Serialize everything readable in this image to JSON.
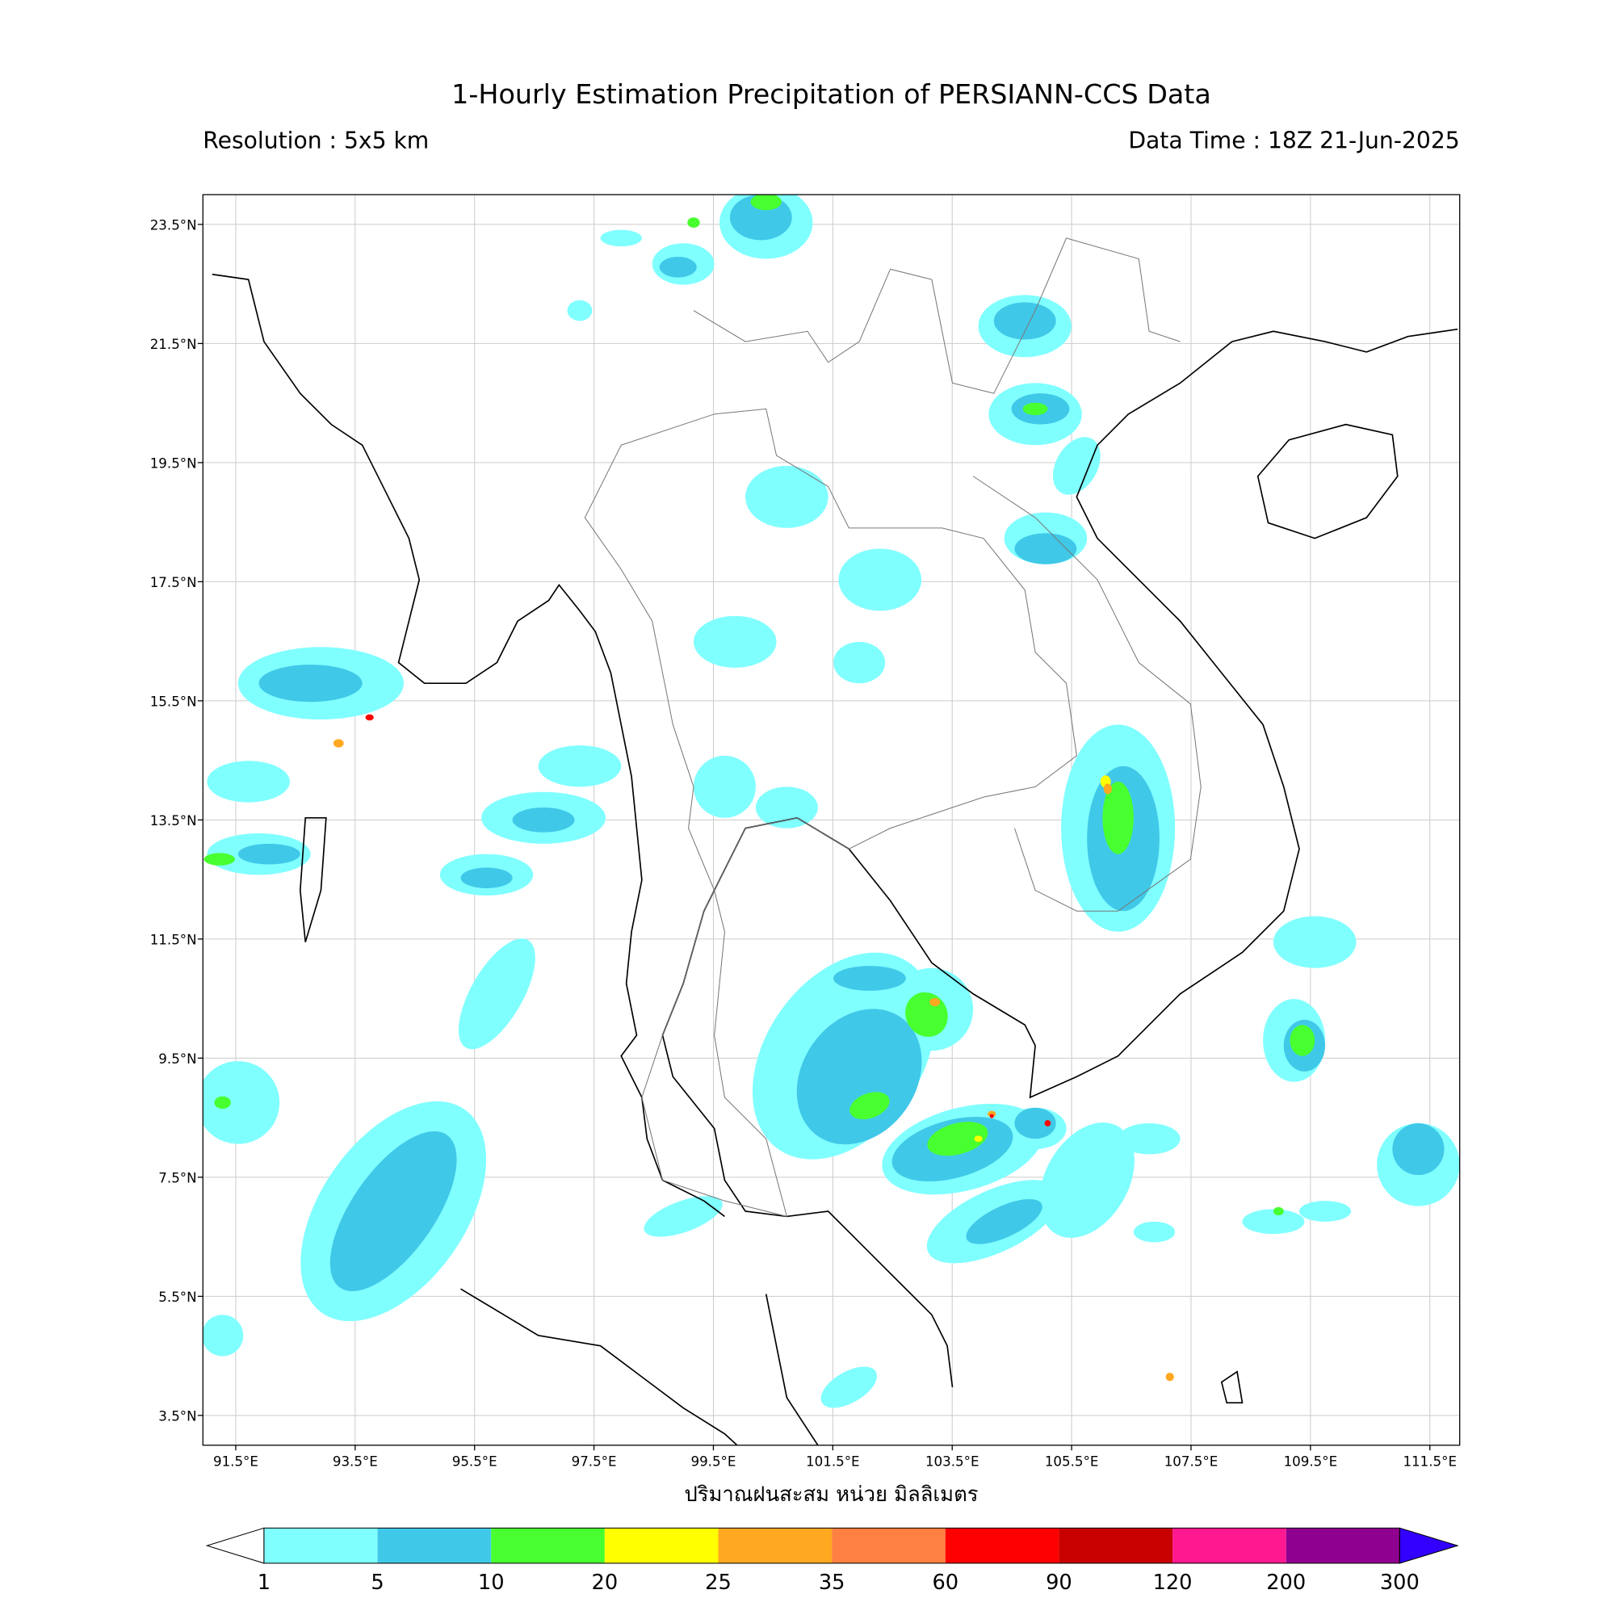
{
  "title": "1-Hourly Estimation Precipitation of PERSIANN-CCS Data",
  "resolution": "Resolution : 5x5 km",
  "data_time": "Data Time : 18Z 21-Jun-2025",
  "map": {
    "lonlim": [
      90.95,
      112.0
    ],
    "latlim": [
      3.0,
      24.0
    ],
    "grid": true,
    "lonticks": [
      {
        "value": 91.5,
        "label": "91.5°E"
      },
      {
        "value": 93.5,
        "label": "93.5°E"
      },
      {
        "value": 95.5,
        "label": "95.5°E"
      },
      {
        "value": 97.5,
        "label": "97.5°E"
      },
      {
        "value": 99.5,
        "label": "99.5°E"
      },
      {
        "value": 101.5,
        "label": "101.5°E"
      },
      {
        "value": 103.5,
        "label": "103.5°E"
      },
      {
        "value": 105.5,
        "label": "105.5°E"
      },
      {
        "value": 107.5,
        "label": "107.5°E"
      },
      {
        "value": 109.5,
        "label": "109.5°E"
      },
      {
        "value": 111.5,
        "label": "111.5°E"
      }
    ],
    "latticks": [
      {
        "value": 23.5,
        "label": "23.5°N"
      },
      {
        "value": 21.5,
        "label": "21.5°N"
      },
      {
        "value": 19.5,
        "label": "19.5°N"
      },
      {
        "value": 17.5,
        "label": "17.5°N"
      },
      {
        "value": 15.5,
        "label": "15.5°N"
      },
      {
        "value": 13.5,
        "label": "13.5°N"
      },
      {
        "value": 11.5,
        "label": "11.5°N"
      },
      {
        "value": 9.5,
        "label": "9.5°N"
      },
      {
        "value": 7.5,
        "label": "7.5°N"
      },
      {
        "value": 5.5,
        "label": "5.5°N"
      },
      {
        "value": 3.5,
        "label": "3.5°N"
      }
    ]
  },
  "colorbar": {
    "label": "ปริมาณฝนสะสม หน่วย มิลลิเมตร",
    "levels": [
      1,
      5,
      10,
      20,
      25,
      35,
      60,
      90,
      120,
      200,
      300
    ],
    "colors": [
      "#80ffff",
      "#40c8e8",
      "#48ff30",
      "#ffff00",
      "#ffa820",
      "#ff8040",
      "#ff0000",
      "#c80000",
      "#ff1890",
      "#900090"
    ],
    "under_color": "#ffffff",
    "over_color": "#3300ff"
  }
}
